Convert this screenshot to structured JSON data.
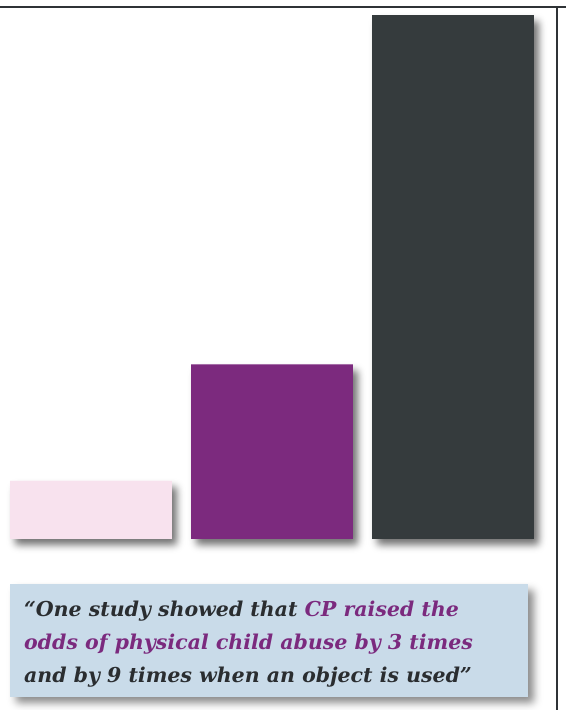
{
  "chart_data": {
    "type": "bar",
    "categories": [
      "",
      "",
      ""
    ],
    "series": [
      {
        "values": [
          1,
          3,
          9
        ]
      }
    ],
    "ylim": [
      0,
      9
    ],
    "colors": [
      "#f8e2ee",
      "#7b2a7e",
      "#363a3d"
    ],
    "title": "",
    "xlabel": "",
    "ylabel": "",
    "grid": false,
    "legend": "none"
  },
  "quote": {
    "line1_a": "“One study showed that ",
    "line1_b": "CP raised the",
    "line2": "odds of physical child abuse by 3 times",
    "line3": "and by 9 times when an object is used”"
  }
}
